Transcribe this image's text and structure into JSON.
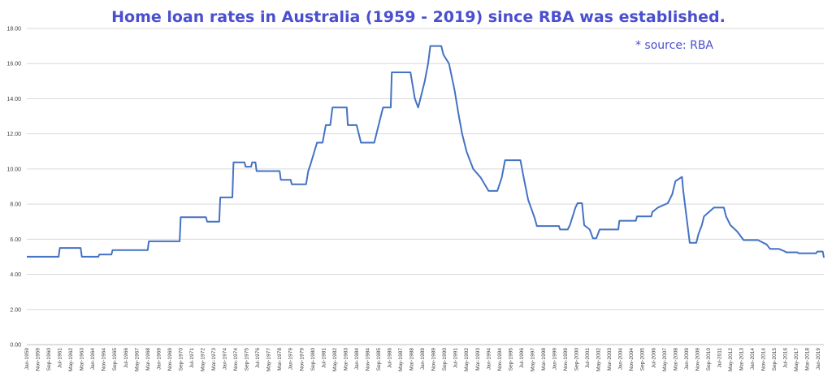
{
  "chart_data": {
    "type": "line",
    "title": "Home loan rates in Australia (1959 - 2019) since RBA was established.",
    "subtitle": "* source: RBA",
    "xlabel": "",
    "ylabel": "",
    "ylim": [
      0,
      18
    ],
    "yticks": [
      "0.00",
      "2.00",
      "4.00",
      "6.00",
      "8.00",
      "10.00",
      "12.00",
      "14.00",
      "16.00",
      "18.00"
    ],
    "grid": true,
    "legend": "none",
    "colors": {
      "line": "#4472c4",
      "title": "#4a4fd0",
      "grid": "#d9d9d9"
    },
    "xrange": [
      "Jan-1959",
      "Jun-2019"
    ],
    "xticks": [
      "Jan-1959",
      "Nov-1959",
      "Sep-1960",
      "Jul-1961",
      "May-1962",
      "Mar-1963",
      "Jan-1964",
      "Nov-1964",
      "Sep-1965",
      "Jul-1966",
      "May-1967",
      "Mar-1968",
      "Jan-1969",
      "Nov-1969",
      "Sep-1970",
      "Jul-1971",
      "May-1972",
      "Mar-1973",
      "Jan-1974",
      "Nov-1974",
      "Sep-1975",
      "Jul-1976",
      "May-1977",
      "Mar-1978",
      "Jan-1979",
      "Nov-1979",
      "Sep-1980",
      "Jul-1981",
      "May-1982",
      "Mar-1983",
      "Jan-1984",
      "Nov-1984",
      "Sep-1985",
      "Jul-1986",
      "May-1987",
      "Mar-1988",
      "Jan-1989",
      "Nov-1989",
      "Sep-1990",
      "Jul-1991",
      "May-1992",
      "Mar-1993",
      "Jan-1994",
      "Nov-1994",
      "Sep-1995",
      "Jul-1996",
      "May-1997",
      "Mar-1998",
      "Jan-1999",
      "Nov-1999",
      "Sep-2000",
      "Jul-2001",
      "May-2002",
      "Mar-2003",
      "Jan-2004",
      "Nov-2004",
      "Sep-2005",
      "Jul-2006",
      "May-2007",
      "Mar-2008",
      "Jan-2009",
      "Nov-2009",
      "Sep-2010",
      "Jul-2011",
      "May-2012",
      "Mar-2013",
      "Jan-2014",
      "Nov-2014",
      "Sep-2015",
      "Jul-2016",
      "May-2017",
      "Mar-2018",
      "Jan-2019"
    ],
    "series": [
      {
        "name": "",
        "points": [
          [
            "1959-01",
            5.0
          ],
          [
            "1961-06",
            5.0
          ],
          [
            "1961-07",
            5.5
          ],
          [
            "1963-02",
            5.5
          ],
          [
            "1963-03",
            5.0
          ],
          [
            "1964-06",
            5.0
          ],
          [
            "1964-07",
            5.13
          ],
          [
            "1965-06",
            5.13
          ],
          [
            "1965-07",
            5.38
          ],
          [
            "1968-03",
            5.38
          ],
          [
            "1968-04",
            5.88
          ],
          [
            "1970-08",
            5.88
          ],
          [
            "1970-09",
            7.25
          ],
          [
            "1972-08",
            7.25
          ],
          [
            "1972-09",
            7.0
          ],
          [
            "1973-08",
            7.0
          ],
          [
            "1973-09",
            8.38
          ],
          [
            "1974-08",
            8.38
          ],
          [
            "1974-09",
            10.38
          ],
          [
            "1975-07",
            10.38
          ],
          [
            "1975-08",
            10.13
          ],
          [
            "1976-01",
            10.13
          ],
          [
            "1976-02",
            10.38
          ],
          [
            "1976-05",
            10.38
          ],
          [
            "1976-06",
            9.88
          ],
          [
            "1978-03",
            9.88
          ],
          [
            "1978-04",
            9.38
          ],
          [
            "1979-01",
            9.38
          ],
          [
            "1979-02",
            9.13
          ],
          [
            "1980-03",
            9.13
          ],
          [
            "1980-05",
            9.88
          ],
          [
            "1980-07",
            10.25
          ],
          [
            "1981-01",
            11.5
          ],
          [
            "1981-06",
            11.5
          ],
          [
            "1981-09",
            12.5
          ],
          [
            "1982-01",
            12.5
          ],
          [
            "1982-03",
            13.5
          ],
          [
            "1983-04",
            13.5
          ],
          [
            "1983-05",
            12.5
          ],
          [
            "1984-01",
            12.5
          ],
          [
            "1984-03",
            12.0
          ],
          [
            "1984-05",
            11.5
          ],
          [
            "1985-05",
            11.5
          ],
          [
            "1985-07",
            12.0
          ],
          [
            "1986-01",
            13.5
          ],
          [
            "1986-08",
            13.5
          ],
          [
            "1986-09",
            15.5
          ],
          [
            "1988-02",
            15.5
          ],
          [
            "1988-06",
            14.0
          ],
          [
            "1988-09",
            13.5
          ],
          [
            "1989-01",
            14.5
          ],
          [
            "1989-03",
            15.0
          ],
          [
            "1989-06",
            16.0
          ],
          [
            "1989-08",
            17.0
          ],
          [
            "1990-06",
            17.0
          ],
          [
            "1990-08",
            16.5
          ],
          [
            "1991-01",
            16.0
          ],
          [
            "1991-06",
            14.5
          ],
          [
            "1991-10",
            13.0
          ],
          [
            "1992-01",
            12.0
          ],
          [
            "1992-05",
            11.0
          ],
          [
            "1992-08",
            10.5
          ],
          [
            "1992-11",
            10.0
          ],
          [
            "1993-06",
            9.5
          ],
          [
            "1994-01",
            8.75
          ],
          [
            "1994-09",
            8.75
          ],
          [
            "1995-01",
            9.5
          ],
          [
            "1995-04",
            10.5
          ],
          [
            "1996-06",
            10.5
          ],
          [
            "1996-09",
            9.5
          ],
          [
            "1997-01",
            8.25
          ],
          [
            "1997-05",
            7.55
          ],
          [
            "1997-07",
            7.2
          ],
          [
            "1997-09",
            6.75
          ],
          [
            "1999-05",
            6.75
          ],
          [
            "1999-06",
            6.55
          ],
          [
            "2000-01",
            6.55
          ],
          [
            "2000-03",
            6.8
          ],
          [
            "2000-08",
            7.8
          ],
          [
            "2000-10",
            8.05
          ],
          [
            "2001-02",
            8.05
          ],
          [
            "2001-04",
            6.8
          ],
          [
            "2001-09",
            6.55
          ],
          [
            "2001-12",
            6.05
          ],
          [
            "2002-03",
            6.05
          ],
          [
            "2002-06",
            6.55
          ],
          [
            "2003-11",
            6.55
          ],
          [
            "2003-12",
            7.05
          ],
          [
            "2005-03",
            7.05
          ],
          [
            "2005-04",
            7.3
          ],
          [
            "2006-05",
            7.3
          ],
          [
            "2006-06",
            7.55
          ],
          [
            "2006-11",
            7.8
          ],
          [
            "2007-08",
            8.05
          ],
          [
            "2007-12",
            8.55
          ],
          [
            "2008-03",
            9.3
          ],
          [
            "2008-09",
            9.55
          ],
          [
            "2008-10",
            8.8
          ],
          [
            "2008-12",
            7.8
          ],
          [
            "2009-02",
            6.8
          ],
          [
            "2009-04",
            5.8
          ],
          [
            "2009-10",
            5.8
          ],
          [
            "2009-12",
            6.3
          ],
          [
            "2010-03",
            6.8
          ],
          [
            "2010-05",
            7.3
          ],
          [
            "2011-02",
            7.8
          ],
          [
            "2011-11",
            7.8
          ],
          [
            "2012-01",
            7.3
          ],
          [
            "2012-05",
            6.8
          ],
          [
            "2012-11",
            6.45
          ],
          [
            "2013-05",
            5.95
          ],
          [
            "2014-06",
            5.95
          ],
          [
            "2015-02",
            5.7
          ],
          [
            "2015-05",
            5.45
          ],
          [
            "2016-01",
            5.45
          ],
          [
            "2016-05",
            5.35
          ],
          [
            "2016-08",
            5.25
          ],
          [
            "2017-06",
            5.25
          ],
          [
            "2017-07",
            5.2
          ],
          [
            "2018-11",
            5.2
          ],
          [
            "2018-12",
            5.3
          ],
          [
            "2019-05",
            5.3
          ],
          [
            "2019-06",
            4.95
          ]
        ]
      }
    ]
  }
}
